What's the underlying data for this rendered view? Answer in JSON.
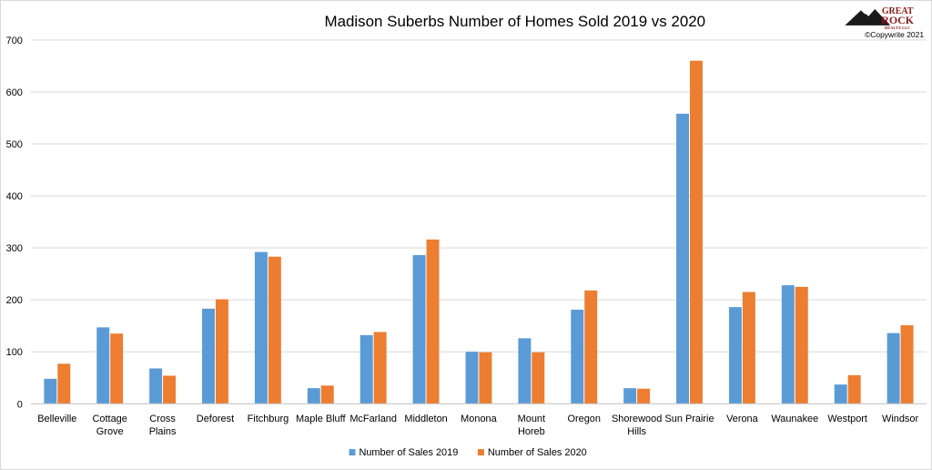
{
  "chart_data": {
    "type": "bar",
    "title": "Madison Suberbs Number of Homes Sold 2019 vs 2020",
    "xlabel": "",
    "ylabel": "",
    "ylim": [
      0,
      700
    ],
    "yticks": [
      0,
      100,
      200,
      300,
      400,
      500,
      600,
      700
    ],
    "grid": true,
    "legend_position": "bottom",
    "categories": [
      [
        "Belleville"
      ],
      [
        "Cottage",
        "Grove"
      ],
      [
        "Cross",
        "Plains"
      ],
      [
        "Deforest"
      ],
      [
        "Fitchburg"
      ],
      [
        "Maple Bluff"
      ],
      [
        "McFarland"
      ],
      [
        "Middleton"
      ],
      [
        "Monona"
      ],
      [
        "Mount",
        "Horeb"
      ],
      [
        "Oregon"
      ],
      [
        "Shorewood",
        "Hills"
      ],
      [
        "Sun Prairie"
      ],
      [
        "Verona"
      ],
      [
        "Waunakee"
      ],
      [
        "Westport"
      ],
      [
        "Windsor"
      ]
    ],
    "series": [
      {
        "name": "Number of Sales 2019",
        "color": "#5b9bd5",
        "values": [
          48,
          147,
          68,
          183,
          292,
          30,
          132,
          286,
          100,
          126,
          181,
          30,
          558,
          186,
          228,
          37,
          136
        ]
      },
      {
        "name": "Number of Sales 2020",
        "color": "#ed7d31",
        "values": [
          77,
          135,
          54,
          201,
          283,
          35,
          138,
          316,
          99,
          99,
          218,
          29,
          660,
          215,
          225,
          55,
          151
        ]
      }
    ]
  },
  "logo": {
    "line1": "GREAT",
    "line2": "ROCK",
    "line3": "REALTY LLC",
    "copyright": "©Copywrite 2021"
  }
}
